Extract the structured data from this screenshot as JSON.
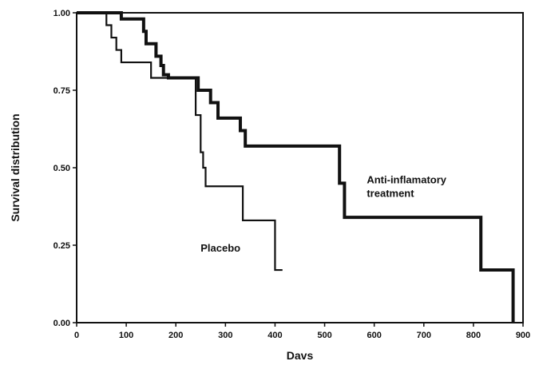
{
  "chart_data": {
    "type": "line",
    "title": "",
    "xlabel": "Davs",
    "ylabel": "Survival distribution",
    "xlim": [
      0,
      900
    ],
    "ylim": [
      0,
      1
    ],
    "x_ticks": [
      "0",
      "100",
      "200",
      "300",
      "400",
      "500",
      "600",
      "700",
      "800",
      "900"
    ],
    "y_ticks": [
      "0.00",
      "0.25",
      "0.50",
      "0.75",
      "1.00"
    ],
    "grid": false,
    "step": true,
    "series": [
      {
        "name": "Placebo",
        "color": "#111111",
        "line": "thin",
        "x": [
          0,
          45,
          60,
          70,
          80,
          90,
          100,
          150,
          235,
          240,
          250,
          255,
          260,
          335,
          400,
          415
        ],
        "y": [
          1.0,
          1.0,
          0.96,
          0.92,
          0.88,
          0.84,
          0.84,
          0.79,
          0.79,
          0.67,
          0.55,
          0.5,
          0.44,
          0.33,
          0.17,
          0.17
        ]
      },
      {
        "name": "Anti-inflamatory treatment",
        "color": "#111111",
        "line": "thick",
        "x": [
          0,
          85,
          90,
          125,
          135,
          140,
          150,
          160,
          170,
          175,
          180,
          185,
          245,
          260,
          270,
          285,
          330,
          340,
          520,
          530,
          540,
          810,
          815,
          880
        ],
        "y": [
          1.0,
          1.0,
          0.98,
          0.98,
          0.94,
          0.9,
          0.9,
          0.86,
          0.83,
          0.8,
          0.8,
          0.79,
          0.75,
          0.75,
          0.71,
          0.66,
          0.62,
          0.57,
          0.57,
          0.45,
          0.34,
          0.34,
          0.17,
          0.0
        ]
      }
    ],
    "annotations": [
      {
        "lines": [
          "Placebo"
        ],
        "x": 250,
        "y": 0.23
      },
      {
        "lines": [
          "Anti-inflamatory",
          "treatment"
        ],
        "x": 585,
        "y": 0.45
      }
    ]
  }
}
